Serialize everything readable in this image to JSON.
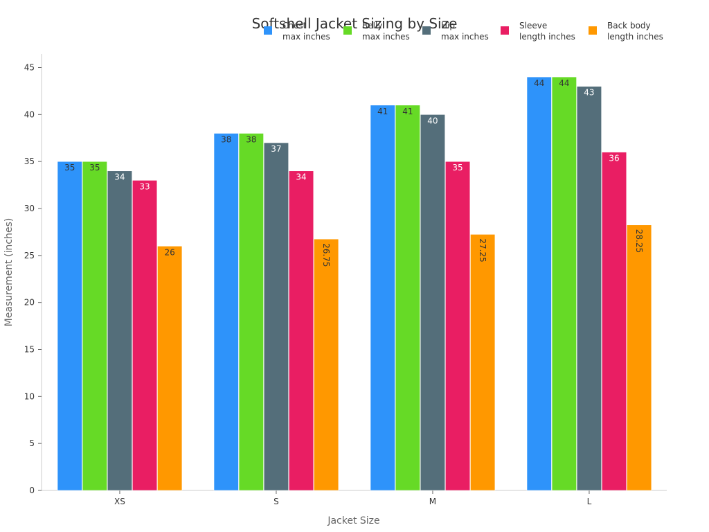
{
  "chart_data": {
    "type": "bar",
    "title": "Softshell Jacket Sizing by Size",
    "xlabel": "Jacket Size",
    "ylabel": "Measurement (inches)",
    "categories": [
      "XS",
      "S",
      "M",
      "L"
    ],
    "ylim": [
      0,
      45
    ],
    "yticks": [
      0,
      5,
      10,
      15,
      20,
      25,
      30,
      35,
      40,
      45
    ],
    "grid": false,
    "legend": "top-right",
    "series": [
      {
        "name_lines": [
          "Chest",
          "max inches"
        ],
        "color": "#2E93FA",
        "label_color": "#333333",
        "values": [
          35,
          38,
          41,
          44
        ]
      },
      {
        "name_lines": [
          "Belly",
          "max inches"
        ],
        "color": "#66DA26",
        "label_color": "#333333",
        "values": [
          35,
          38,
          41,
          44
        ]
      },
      {
        "name_lines": [
          "Hip",
          "max inches"
        ],
        "color": "#546E7A",
        "label_color": "#ffffff",
        "values": [
          34,
          37,
          40,
          43
        ]
      },
      {
        "name_lines": [
          "Sleeve",
          "length inches"
        ],
        "color": "#E91E63",
        "label_color": "#ffffff",
        "values": [
          33,
          34,
          35,
          36
        ]
      },
      {
        "name_lines": [
          "Back body",
          "length inches"
        ],
        "color": "#FF9800",
        "label_color": "#333333",
        "values": [
          26,
          26.75,
          27.25,
          28.25
        ]
      }
    ]
  }
}
